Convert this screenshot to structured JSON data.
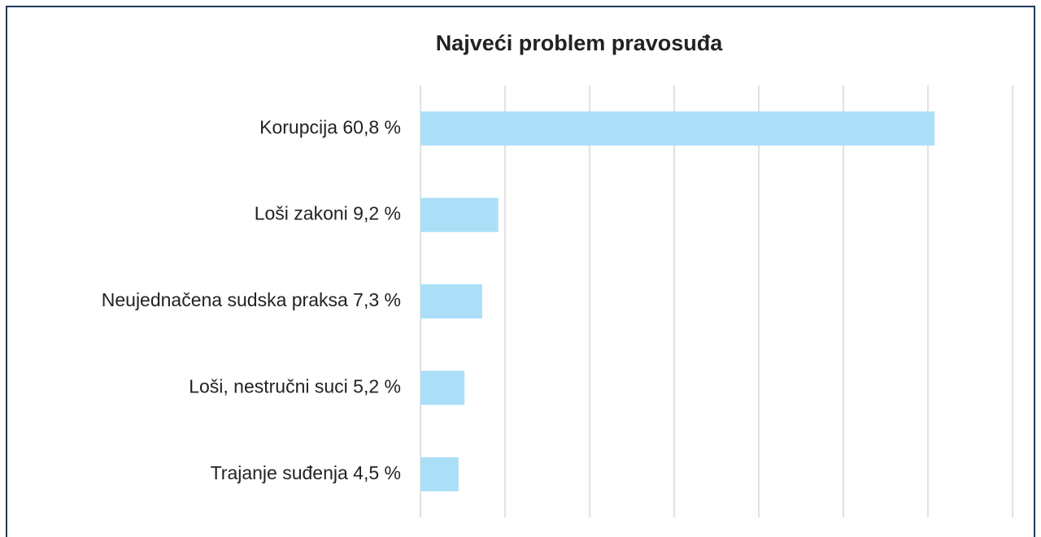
{
  "chart_data": {
    "type": "bar",
    "orientation": "horizontal",
    "title": "Najveći problem pravosuđa",
    "categories": [
      "Korupcija 60,8 %",
      "Loši zakoni 9,2 %",
      "Neujednačena sudska praksa 7,3 %",
      "Loši, nestručni suci 5,2 %",
      "Trajanje suđenja 4,5 %"
    ],
    "values": [
      60.8,
      9.2,
      7.3,
      5.2,
      4.5
    ],
    "color": "#abdff8",
    "xlim": [
      0,
      70
    ],
    "xticks": [
      0,
      10,
      20,
      30,
      40,
      50,
      60,
      70
    ],
    "grid": true
  }
}
